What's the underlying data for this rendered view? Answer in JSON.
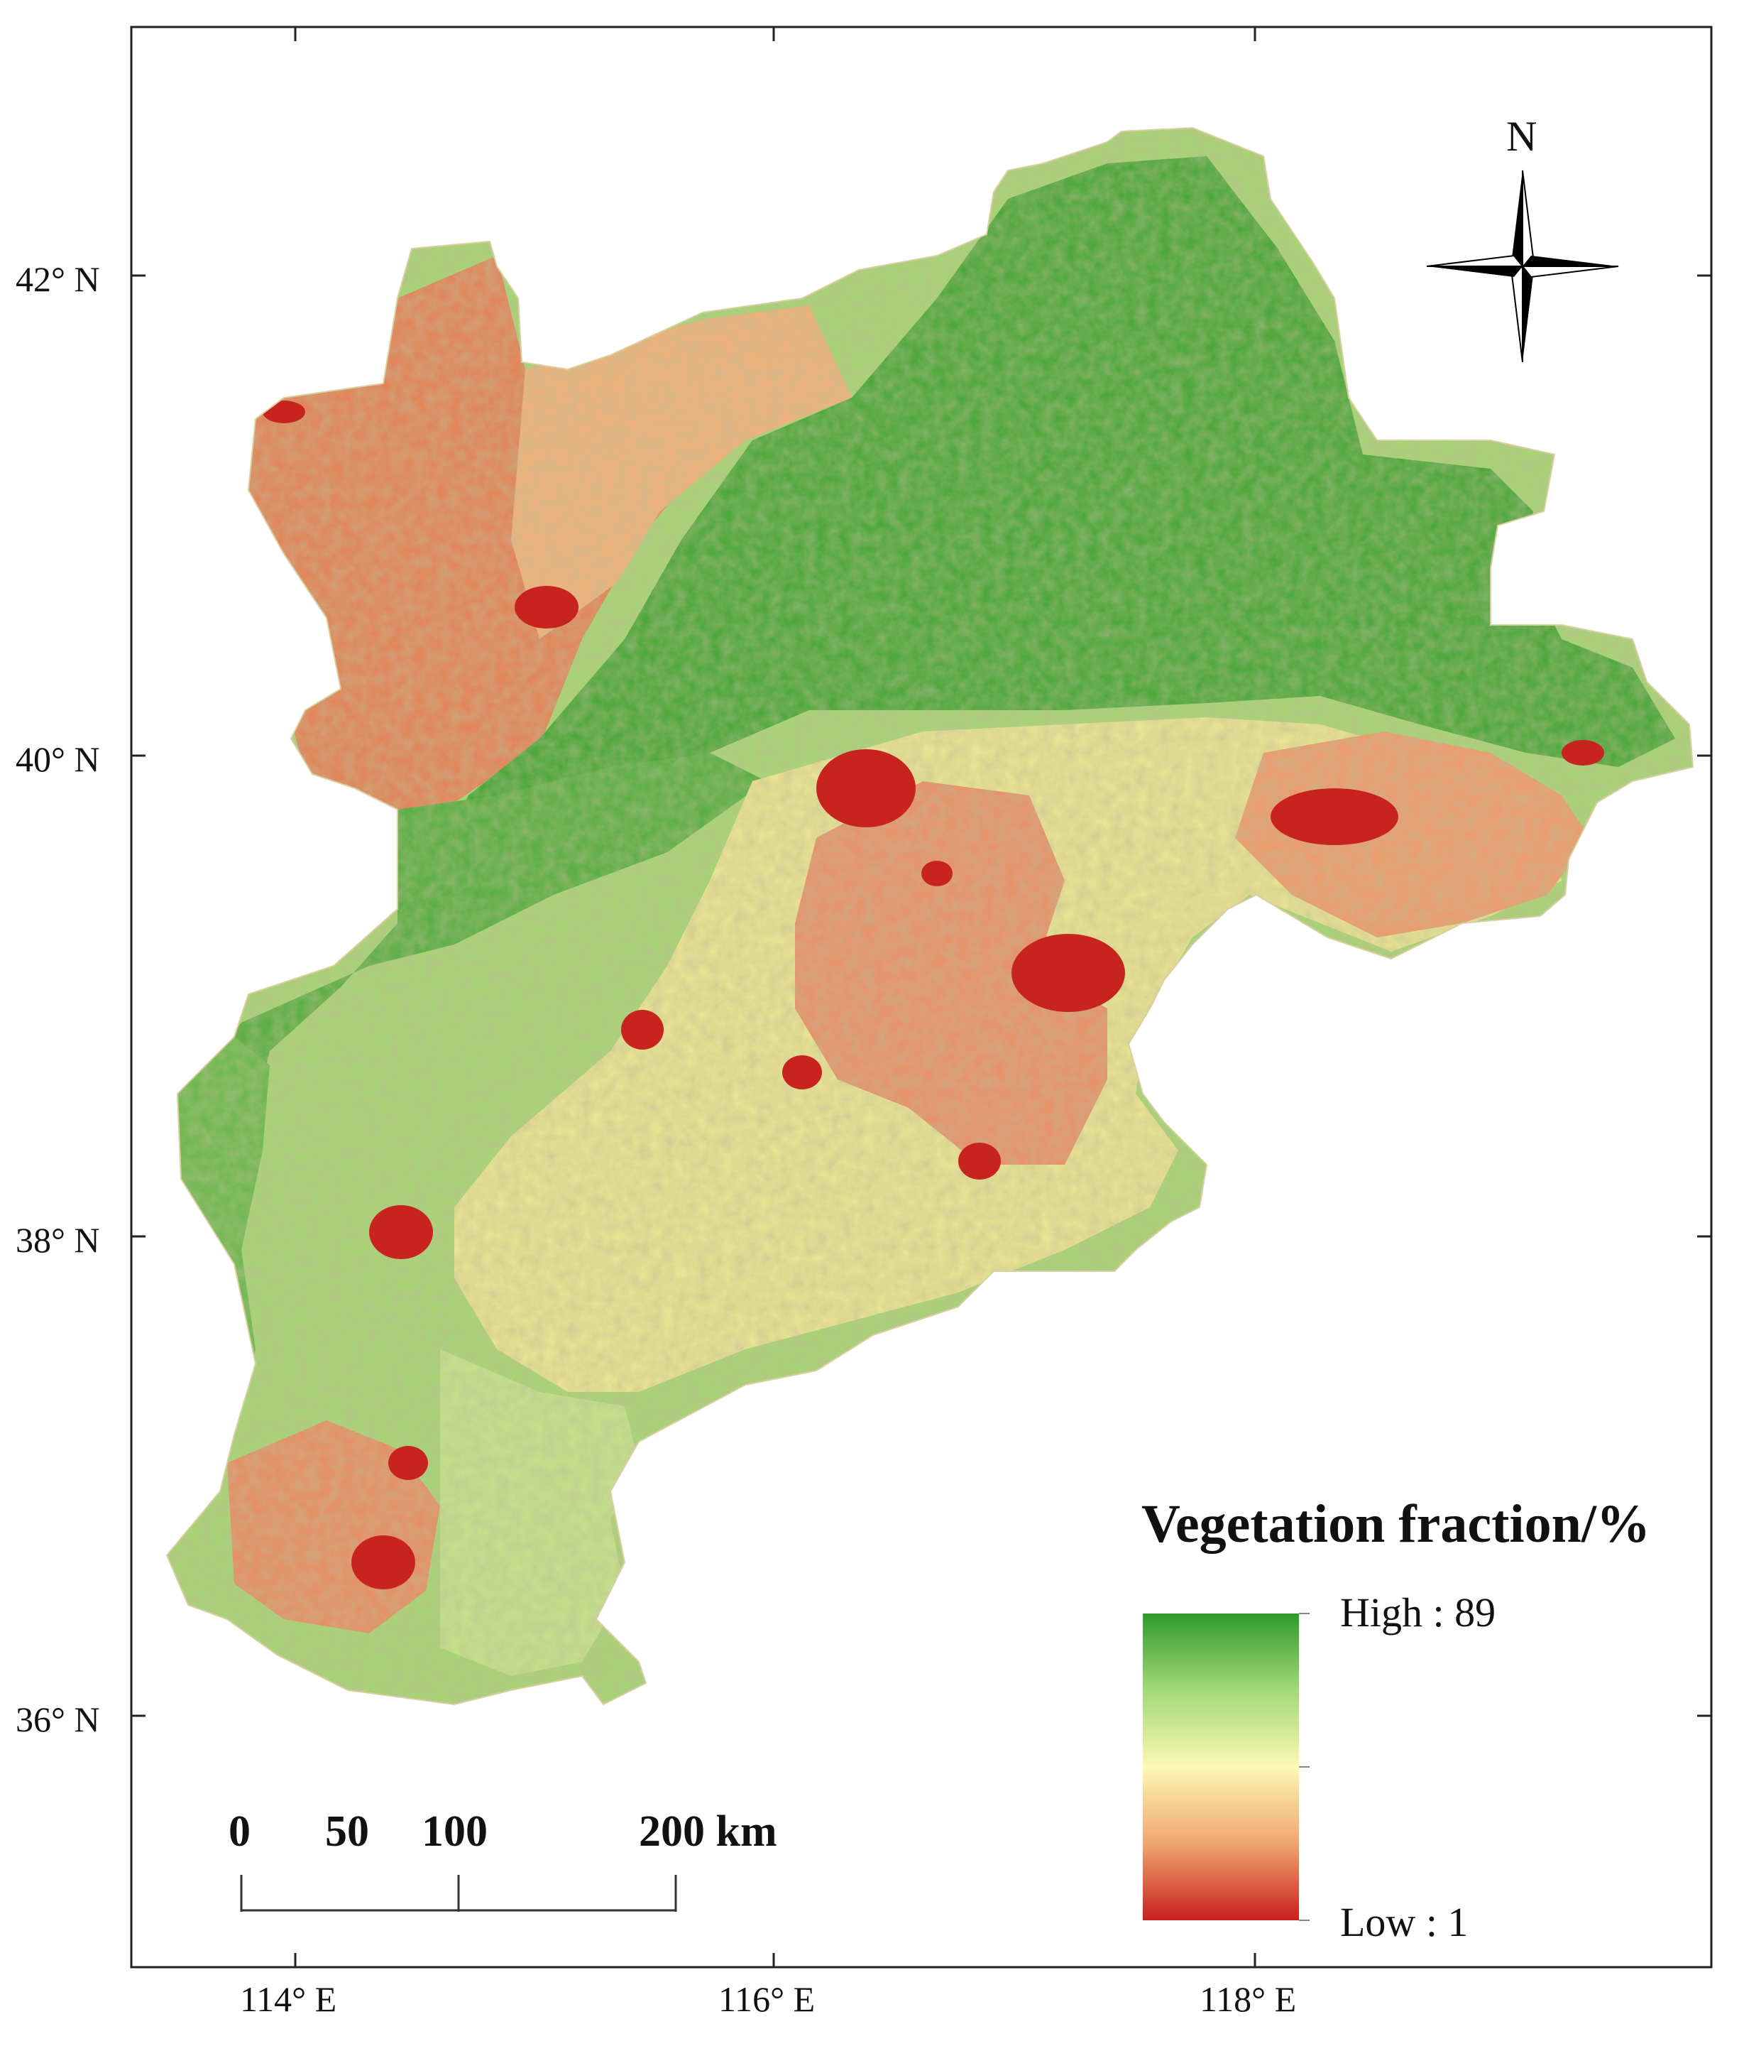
{
  "map": {
    "latitude_labels": [
      "42° N",
      "40° N",
      "38° N",
      "36° N"
    ],
    "longitude_labels": [
      "114° E",
      "116° E",
      "118° E"
    ],
    "north_arrow": {
      "label": "N",
      "icon": "north-arrow-icon"
    },
    "legend": {
      "title": "Vegetation fraction/%",
      "high_label": "High : 89",
      "low_label": "Low : 1",
      "colors": {
        "high": "#2e9a2a",
        "mid_high": "#a3d977",
        "mid": "#fbf8b6",
        "mid_low": "#f0a56e",
        "low": "#c8201e"
      }
    },
    "scale_bar": {
      "labels": [
        "0",
        "50",
        "100",
        "200 km"
      ],
      "values_km": [
        0,
        50,
        100,
        200
      ]
    },
    "region_colors": {
      "dense_vegetation": "#3f9f35",
      "moderate_vegetation": "#8cc863",
      "sparse_vegetation": "#f1e98f",
      "low_vegetation": "#e6875a",
      "urban": "#c8241f"
    }
  }
}
